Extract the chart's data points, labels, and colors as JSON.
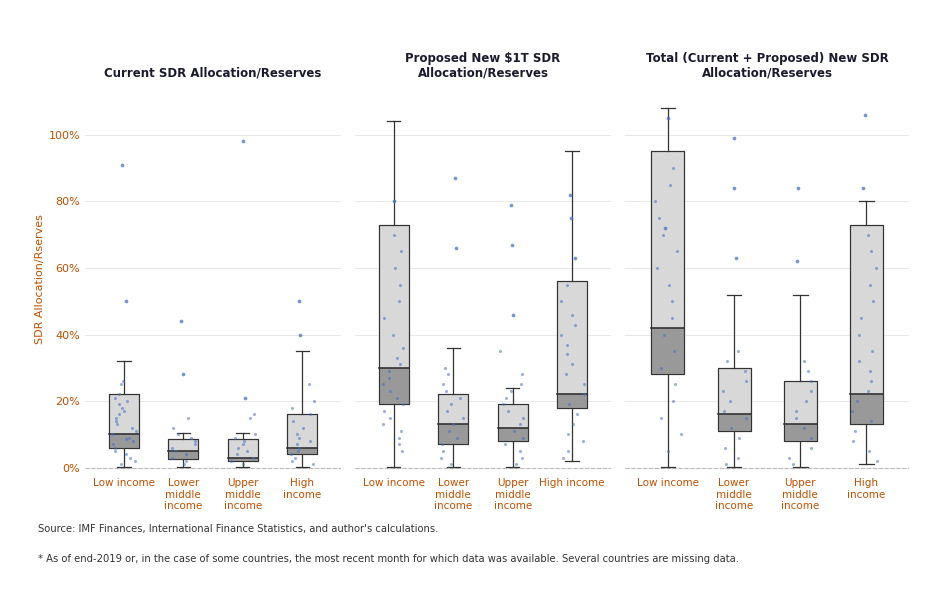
{
  "panels": [
    {
      "title": "Current SDR Allocation/Reserves",
      "groups": [
        {
          "label": "Low income",
          "whisker_low": 0.001,
          "q1": 0.06,
          "median": 0.1,
          "q3": 0.22,
          "whisker_high": 0.32,
          "outliers": [
            0.5,
            0.91
          ],
          "jitter_y": [
            0.01,
            0.02,
            0.03,
            0.04,
            0.05,
            0.06,
            0.07,
            0.08,
            0.085,
            0.09,
            0.1,
            0.11,
            0.12,
            0.13,
            0.14,
            0.15,
            0.16,
            0.17,
            0.18,
            0.19,
            0.2,
            0.21,
            0.22,
            0.25,
            0.26
          ]
        },
        {
          "label": "Lower\nmiddle\nincome",
          "whisker_low": 0.001,
          "q1": 0.025,
          "median": 0.05,
          "q3": 0.085,
          "whisker_high": 0.105,
          "outliers": [
            0.28,
            0.44
          ],
          "jitter_y": [
            0.01,
            0.02,
            0.03,
            0.04,
            0.05,
            0.06,
            0.07,
            0.08,
            0.09,
            0.1,
            0.12,
            0.15
          ]
        },
        {
          "label": "Upper\nmiddle\nincome",
          "whisker_low": 0.001,
          "q1": 0.02,
          "median": 0.03,
          "q3": 0.085,
          "whisker_high": 0.105,
          "outliers": [
            0.21,
            0.98
          ],
          "jitter_y": [
            0.01,
            0.02,
            0.03,
            0.04,
            0.05,
            0.06,
            0.07,
            0.08,
            0.09,
            0.1,
            0.15,
            0.16
          ]
        },
        {
          "label": "High\nincome",
          "whisker_low": 0.001,
          "q1": 0.04,
          "median": 0.06,
          "q3": 0.16,
          "whisker_high": 0.35,
          "outliers": [
            0.4,
            0.5
          ],
          "jitter_y": [
            0.01,
            0.02,
            0.03,
            0.04,
            0.05,
            0.06,
            0.07,
            0.08,
            0.09,
            0.1,
            0.12,
            0.14,
            0.16,
            0.18,
            0.2,
            0.25
          ]
        }
      ]
    },
    {
      "title": "Proposed New $1T SDR\nAllocation/Reserves",
      "groups": [
        {
          "label": "Low income",
          "whisker_low": 0.001,
          "q1": 0.19,
          "median": 0.3,
          "q3": 0.73,
          "whisker_high": 1.04,
          "outliers": [
            0.8
          ],
          "jitter_y": [
            0.05,
            0.07,
            0.09,
            0.11,
            0.13,
            0.15,
            0.17,
            0.19,
            0.21,
            0.23,
            0.25,
            0.27,
            0.29,
            0.31,
            0.33,
            0.36,
            0.4,
            0.45,
            0.5,
            0.55,
            0.6,
            0.65,
            0.7
          ]
        },
        {
          "label": "Lower\nmiddle\nincome",
          "whisker_low": 0.001,
          "q1": 0.07,
          "median": 0.13,
          "q3": 0.22,
          "whisker_high": 0.36,
          "outliers": [
            0.66,
            0.87
          ],
          "jitter_y": [
            0.01,
            0.03,
            0.05,
            0.07,
            0.09,
            0.11,
            0.13,
            0.15,
            0.17,
            0.19,
            0.21,
            0.23,
            0.25,
            0.28,
            0.3
          ]
        },
        {
          "label": "Upper\nmiddle\nincome",
          "whisker_low": 0.001,
          "q1": 0.08,
          "median": 0.12,
          "q3": 0.19,
          "whisker_high": 0.24,
          "outliers": [
            0.46,
            0.67,
            0.79
          ],
          "jitter_y": [
            0.01,
            0.03,
            0.05,
            0.07,
            0.09,
            0.11,
            0.13,
            0.15,
            0.17,
            0.19,
            0.21,
            0.23,
            0.25,
            0.28,
            0.35
          ]
        },
        {
          "label": "High income",
          "whisker_low": 0.02,
          "q1": 0.18,
          "median": 0.22,
          "q3": 0.56,
          "whisker_high": 0.95,
          "outliers": [
            0.63,
            0.75,
            0.82
          ],
          "jitter_y": [
            0.03,
            0.05,
            0.08,
            0.1,
            0.13,
            0.16,
            0.19,
            0.22,
            0.25,
            0.28,
            0.31,
            0.34,
            0.37,
            0.4,
            0.43,
            0.46,
            0.5,
            0.55
          ]
        }
      ]
    },
    {
      "title": "Total (Current + Proposed) New SDR\nAllocation/Reserves",
      "groups": [
        {
          "label": "Low income",
          "whisker_low": 0.001,
          "q1": 0.28,
          "median": 0.42,
          "q3": 0.95,
          "whisker_high": 1.08,
          "outliers": [
            0.72,
            1.05
          ],
          "jitter_y": [
            0.05,
            0.1,
            0.15,
            0.2,
            0.25,
            0.3,
            0.35,
            0.4,
            0.45,
            0.5,
            0.55,
            0.6,
            0.65,
            0.7,
            0.75,
            0.8,
            0.85,
            0.9
          ]
        },
        {
          "label": "Lower\nmiddle\nincome",
          "whisker_low": 0.001,
          "q1": 0.11,
          "median": 0.16,
          "q3": 0.3,
          "whisker_high": 0.52,
          "outliers": [
            0.63,
            0.84,
            0.99
          ],
          "jitter_y": [
            0.01,
            0.03,
            0.06,
            0.09,
            0.12,
            0.15,
            0.17,
            0.2,
            0.23,
            0.26,
            0.29,
            0.32,
            0.35
          ]
        },
        {
          "label": "Upper\nmiddle\nincome",
          "whisker_low": 0.001,
          "q1": 0.08,
          "median": 0.13,
          "q3": 0.26,
          "whisker_high": 0.52,
          "outliers": [
            0.62,
            0.84
          ],
          "jitter_y": [
            0.01,
            0.03,
            0.06,
            0.09,
            0.12,
            0.15,
            0.17,
            0.2,
            0.23,
            0.26,
            0.29,
            0.32
          ]
        },
        {
          "label": "High\nincome",
          "whisker_low": 0.01,
          "q1": 0.13,
          "median": 0.22,
          "q3": 0.73,
          "whisker_high": 0.8,
          "outliers": [
            0.84,
            1.06
          ],
          "jitter_y": [
            0.02,
            0.05,
            0.08,
            0.11,
            0.14,
            0.17,
            0.2,
            0.23,
            0.26,
            0.29,
            0.32,
            0.35,
            0.4,
            0.45,
            0.5,
            0.55,
            0.6,
            0.65,
            0.7
          ]
        }
      ]
    }
  ],
  "box_color_light": "#d8d8d8",
  "box_color_dark": "#999999",
  "whisker_color": "#333333",
  "dot_color": "#4472C4",
  "outlier_color": "#4472C4",
  "ylabel": "SDR Allocation/Rserves",
  "yticks": [
    0.0,
    0.2,
    0.4,
    0.6,
    0.8,
    1.0
  ],
  "yticklabels": [
    "0%",
    "20%",
    "40%",
    "60%",
    "80%",
    "100%"
  ],
  "ymax": 1.15,
  "title_color": "#1a1a2e",
  "label_color": "#C05000",
  "ylabel_color": "#C05000",
  "tick_color": "#C05000",
  "grid_color": "#e8e8e8",
  "source_text": "Source: IMF Finances, International Finance Statistics, and author's calculations.",
  "footnote_text": "* As of end-2019 or, in the case of some countries, the most recent month for which data was available. Several countries are missing data.",
  "background_color": "#ffffff"
}
